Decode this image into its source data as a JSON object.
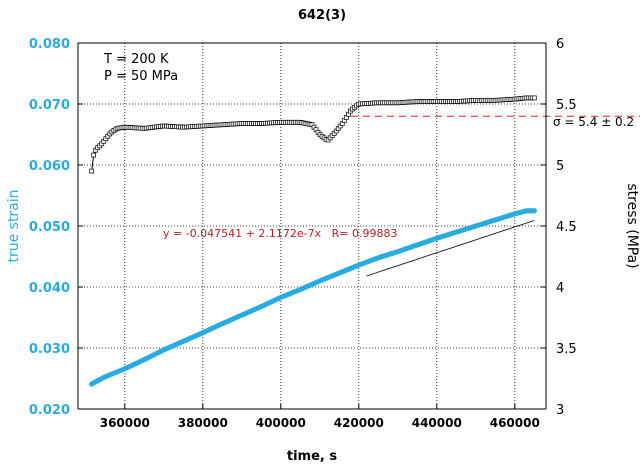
{
  "chart_data": {
    "type": "scatter",
    "title": "642(3)",
    "xlabel": "time, s",
    "ylabel_left": "true strain",
    "ylabel_right": "stress (MPa)",
    "xlim": [
      348000,
      468000
    ],
    "ylim_left": [
      0.02,
      0.08
    ],
    "ylim_right": [
      3,
      6
    ],
    "x_ticks": [
      "360000",
      "380000",
      "400000",
      "420000",
      "440000",
      "460000"
    ],
    "y_left_ticks": [
      "0.020",
      "0.030",
      "0.040",
      "0.050",
      "0.060",
      "0.070",
      "0.080"
    ],
    "y_right_ticks": [
      "3",
      "3.5",
      "4",
      "4.5",
      "5",
      "5.5",
      "6"
    ],
    "grid": "dotted",
    "colors": {
      "strain": "#29ABE2",
      "stress": "#000000",
      "fit_text": "#B22222",
      "mean_line": "#D62728"
    },
    "annotations": {
      "temperature": "T = 200 K",
      "pressure": "P = 50 MPa",
      "sigma": "σ = 5.4 ± 0.2",
      "fit": "y = -0.047541 + 2.1172e-7x   R= 0.99883"
    },
    "fit": {
      "intercept": -0.047541,
      "slope": 2.1172e-07,
      "r": 0.99883,
      "x_range": [
        422000,
        465000
      ]
    },
    "mean_stress": 5.4,
    "series": [
      {
        "axis": "left",
        "marker": "circle",
        "x": [
          351500,
          355000,
          360000,
          365000,
          370000,
          375000,
          380000,
          385000,
          390000,
          395000,
          400000,
          405000,
          410000,
          415000,
          420000,
          425000,
          430000,
          435000,
          440000,
          445000,
          450000,
          455000,
          460000,
          463000,
          465000
        ],
        "y": [
          0.0241,
          0.0253,
          0.0266,
          0.0281,
          0.0297,
          0.0311,
          0.0325,
          0.034,
          0.0354,
          0.0368,
          0.0383,
          0.0396,
          0.041,
          0.0423,
          0.0436,
          0.0448,
          0.0458,
          0.0469,
          0.048,
          0.049,
          0.05,
          0.051,
          0.052,
          0.0525,
          0.0525
        ]
      },
      {
        "axis": "right",
        "marker": "square",
        "x": [
          351500,
          351800,
          352000,
          352500,
          353000,
          354000,
          355000,
          356000,
          357000,
          358000,
          360000,
          365000,
          370000,
          375000,
          380000,
          385000,
          390000,
          395000,
          400000,
          405000,
          408000,
          410000,
          412000,
          414000,
          416000,
          418000,
          420000,
          425000,
          430000,
          435000,
          440000,
          445000,
          450000,
          455000,
          460000,
          463000,
          465000
        ],
        "y": [
          4.95,
          5.02,
          5.08,
          5.12,
          5.14,
          5.17,
          5.21,
          5.25,
          5.28,
          5.3,
          5.31,
          5.3,
          5.32,
          5.31,
          5.32,
          5.33,
          5.34,
          5.34,
          5.35,
          5.35,
          5.33,
          5.25,
          5.2,
          5.27,
          5.35,
          5.45,
          5.5,
          5.51,
          5.51,
          5.52,
          5.52,
          5.52,
          5.53,
          5.53,
          5.54,
          5.55,
          5.55
        ]
      }
    ]
  }
}
